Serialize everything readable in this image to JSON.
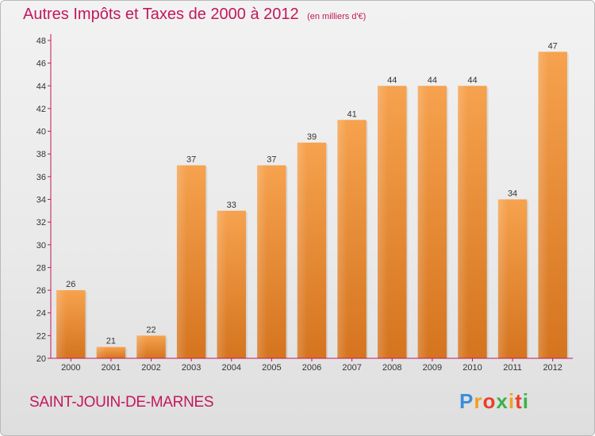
{
  "header": {
    "title": "Autres Impôts et Taxes de 2000 à 2012",
    "subtitle": "(en milliers d'€)"
  },
  "footer": {
    "commune": "SAINT-JOUIN-DE-MARNES",
    "logo_letters": [
      "P",
      "r",
      "o",
      "x",
      "i",
      "t",
      "i"
    ],
    "logo_colors": [
      "#3b8ed8",
      "#f0a020",
      "#e8402a",
      "#3bb14a",
      "#f0a020",
      "#e8402a",
      "#3bb14a"
    ]
  },
  "colors": {
    "accent": "#c2185b",
    "bar_light": "#f6a24e",
    "bar_dark": "#d5741f",
    "axis": "#c2185b"
  },
  "chart_data": {
    "type": "bar",
    "categories": [
      "2000",
      "2001",
      "2002",
      "2003",
      "2004",
      "2005",
      "2006",
      "2007",
      "2008",
      "2009",
      "2010",
      "2011",
      "2012"
    ],
    "values": [
      26,
      21,
      22,
      37,
      33,
      37,
      39,
      41,
      44,
      44,
      44,
      34,
      47
    ],
    "title": "Autres Impôts et Taxes de 2000 à 2012",
    "subtitle": "(en milliers d'€)",
    "xlabel": "",
    "ylabel": "",
    "ylim": [
      20,
      48
    ],
    "yticks": [
      20,
      22,
      24,
      26,
      28,
      30,
      32,
      34,
      36,
      38,
      40,
      42,
      44,
      46,
      48
    ],
    "grid": false,
    "data_labels": true
  }
}
